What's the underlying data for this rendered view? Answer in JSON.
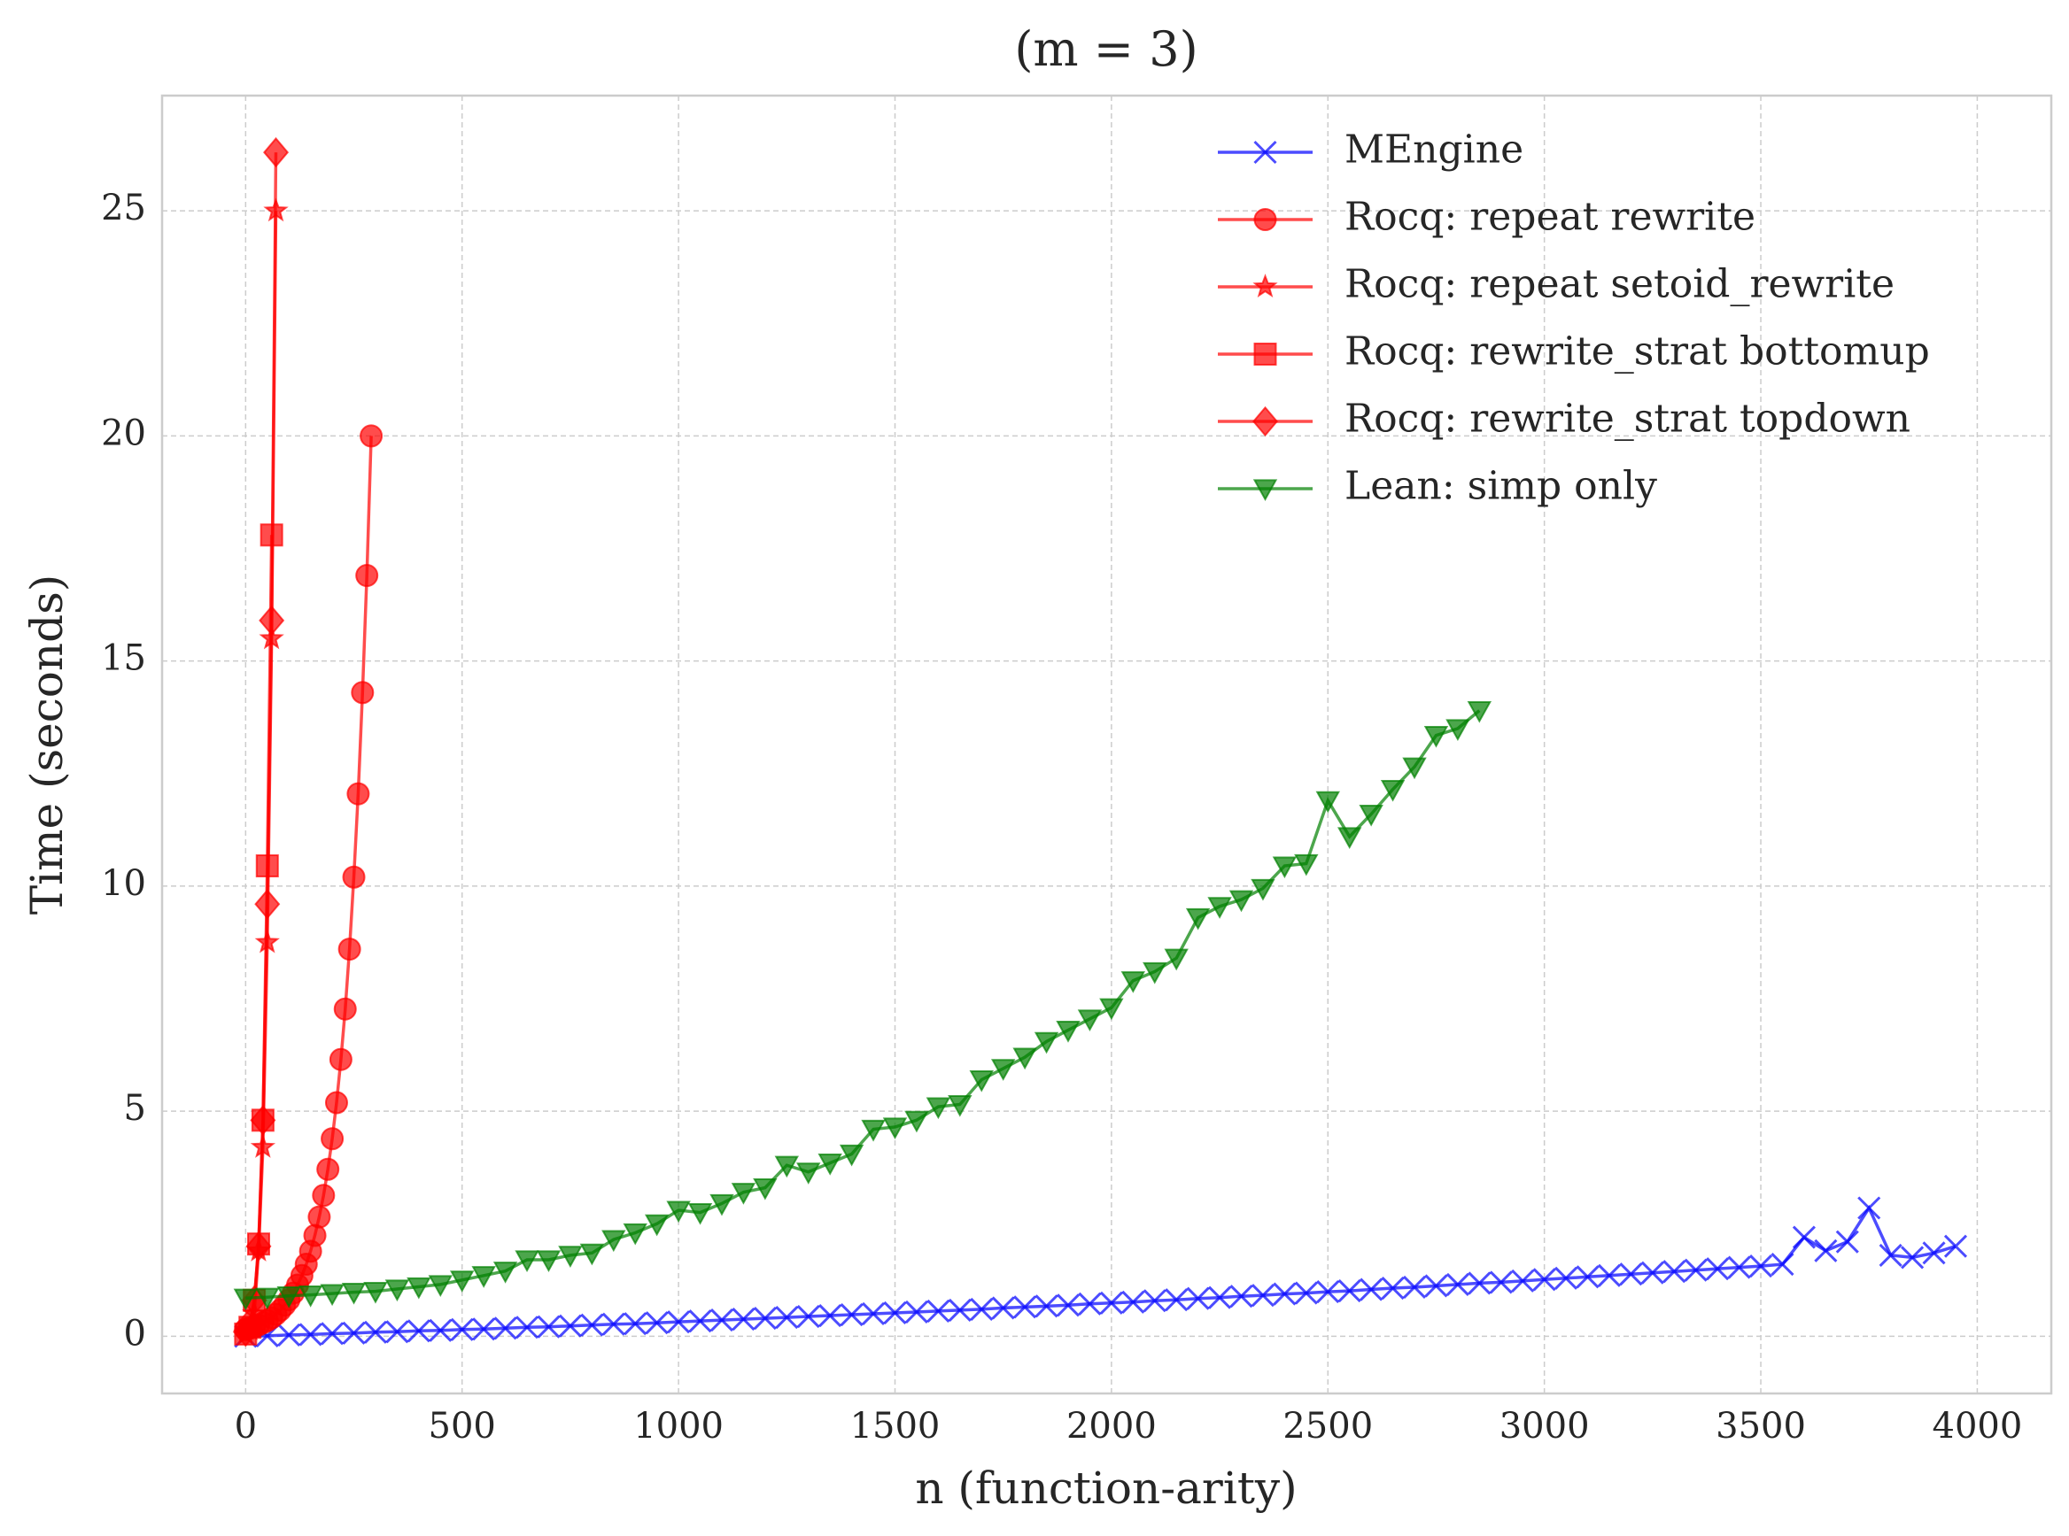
{
  "chart_data": {
    "type": "line",
    "title": "(m = 3)",
    "xlabel": "n (function-arity)",
    "ylabel": "Time (seconds)",
    "xlim": [
      -193,
      4171
    ],
    "ylim": [
      -1.27,
      27.56
    ],
    "xticks": [
      0,
      500,
      1000,
      1500,
      2000,
      2500,
      3000,
      3500,
      4000
    ],
    "yticks": [
      0,
      5,
      10,
      15,
      20,
      25
    ],
    "grid": true,
    "legend": "upper right",
    "series": [
      {
        "name": "MEngine",
        "color": "#0000ff",
        "marker": "x",
        "x": [
          0,
          50,
          100,
          150,
          200,
          250,
          300,
          350,
          400,
          450,
          500,
          550,
          600,
          650,
          700,
          750,
          800,
          850,
          900,
          950,
          1000,
          1050,
          1100,
          1150,
          1200,
          1250,
          1300,
          1350,
          1400,
          1450,
          1500,
          1550,
          1600,
          1650,
          1700,
          1750,
          1800,
          1850,
          1900,
          1950,
          2000,
          2050,
          2100,
          2150,
          2200,
          2250,
          2300,
          2350,
          2400,
          2450,
          2500,
          2550,
          2600,
          2650,
          2700,
          2750,
          2800,
          2850,
          2900,
          2950,
          3000,
          3050,
          3100,
          3150,
          3200,
          3250,
          3300,
          3350,
          3400,
          3450,
          3500,
          3550,
          3600,
          3650,
          3700,
          3750,
          3800,
          3850,
          3900,
          3950
        ],
        "values": [
          0.0,
          0.01,
          0.03,
          0.04,
          0.06,
          0.07,
          0.09,
          0.1,
          0.12,
          0.13,
          0.15,
          0.16,
          0.18,
          0.2,
          0.21,
          0.23,
          0.25,
          0.27,
          0.28,
          0.3,
          0.32,
          0.34,
          0.36,
          0.38,
          0.4,
          0.42,
          0.44,
          0.46,
          0.48,
          0.5,
          0.52,
          0.54,
          0.56,
          0.58,
          0.6,
          0.63,
          0.65,
          0.67,
          0.69,
          0.72,
          0.74,
          0.76,
          0.79,
          0.81,
          0.84,
          0.86,
          0.89,
          0.91,
          0.94,
          0.96,
          0.99,
          1.01,
          1.04,
          1.07,
          1.09,
          1.12,
          1.15,
          1.18,
          1.2,
          1.23,
          1.26,
          1.29,
          1.32,
          1.35,
          1.38,
          1.41,
          1.44,
          1.47,
          1.5,
          1.53,
          1.56,
          1.6,
          2.2,
          1.9,
          2.1,
          2.85,
          1.8,
          1.75,
          1.85,
          2.0
        ]
      },
      {
        "name": "Rocq: repeat rewrite",
        "color": "#ff0000",
        "marker": "o",
        "x": [
          0,
          10,
          20,
          30,
          40,
          50,
          60,
          70,
          80,
          90,
          100,
          110,
          120,
          130,
          140,
          150,
          160,
          170,
          180,
          190,
          200,
          210,
          220,
          230,
          240,
          250,
          260,
          270,
          280,
          290
        ],
        "values": [
          0.15,
          0.18,
          0.21,
          0.25,
          0.3,
          0.35,
          0.41,
          0.49,
          0.58,
          0.69,
          0.81,
          0.96,
          1.14,
          1.35,
          1.6,
          1.89,
          2.24,
          2.65,
          3.13,
          3.71,
          4.39,
          5.19,
          6.15,
          7.27,
          8.6,
          10.2,
          12.05,
          14.3,
          16.9,
          20.0
        ]
      },
      {
        "name": "Rocq: repeat setoid_rewrite",
        "color": "#ff0000",
        "marker": "*",
        "x": [
          0,
          10,
          20,
          30,
          40,
          50,
          60,
          70
        ],
        "values": [
          0.05,
          0.15,
          0.5,
          1.9,
          4.2,
          8.75,
          15.5,
          25.0
        ]
      },
      {
        "name": "Rocq: rewrite_strat bottomup",
        "color": "#ff0000",
        "marker": "s",
        "x": [
          0,
          10,
          20,
          30,
          40,
          50,
          60
        ],
        "values": [
          0.05,
          0.2,
          0.8,
          2.05,
          4.8,
          10.45,
          17.8
        ]
      },
      {
        "name": "Rocq: rewrite_strat topdown",
        "color": "#ff0000",
        "marker": "D",
        "x": [
          0,
          10,
          20,
          30,
          40,
          50,
          60,
          70
        ],
        "values": [
          0.1,
          0.3,
          0.8,
          2.0,
          4.8,
          9.6,
          15.9,
          26.3
        ]
      },
      {
        "name": "Lean: simp only",
        "color": "#008000",
        "marker": "v",
        "x": [
          0,
          50,
          100,
          150,
          200,
          250,
          300,
          350,
          400,
          450,
          500,
          550,
          600,
          650,
          700,
          750,
          800,
          850,
          900,
          950,
          1000,
          1050,
          1100,
          1150,
          1200,
          1250,
          1300,
          1350,
          1400,
          1450,
          1500,
          1550,
          1600,
          1650,
          1700,
          1750,
          1800,
          1850,
          1900,
          1950,
          2000,
          2050,
          2100,
          2150,
          2200,
          2250,
          2300,
          2350,
          2400,
          2450,
          2500,
          2550,
          2600,
          2650,
          2700,
          2750,
          2800,
          2850
        ],
        "values": [
          0.85,
          0.87,
          0.9,
          0.92,
          0.95,
          0.98,
          1.0,
          1.05,
          1.1,
          1.15,
          1.25,
          1.35,
          1.45,
          1.7,
          1.7,
          1.8,
          1.85,
          2.15,
          2.3,
          2.5,
          2.8,
          2.75,
          2.95,
          3.2,
          3.3,
          3.8,
          3.65,
          3.85,
          4.05,
          4.6,
          4.65,
          4.8,
          5.1,
          5.15,
          5.7,
          5.95,
          6.2,
          6.55,
          6.8,
          7.05,
          7.3,
          7.9,
          8.1,
          8.4,
          9.3,
          9.55,
          9.7,
          9.95,
          10.45,
          10.5,
          11.9,
          11.1,
          11.6,
          12.15,
          12.65,
          13.35,
          13.5,
          13.9
        ]
      }
    ]
  }
}
